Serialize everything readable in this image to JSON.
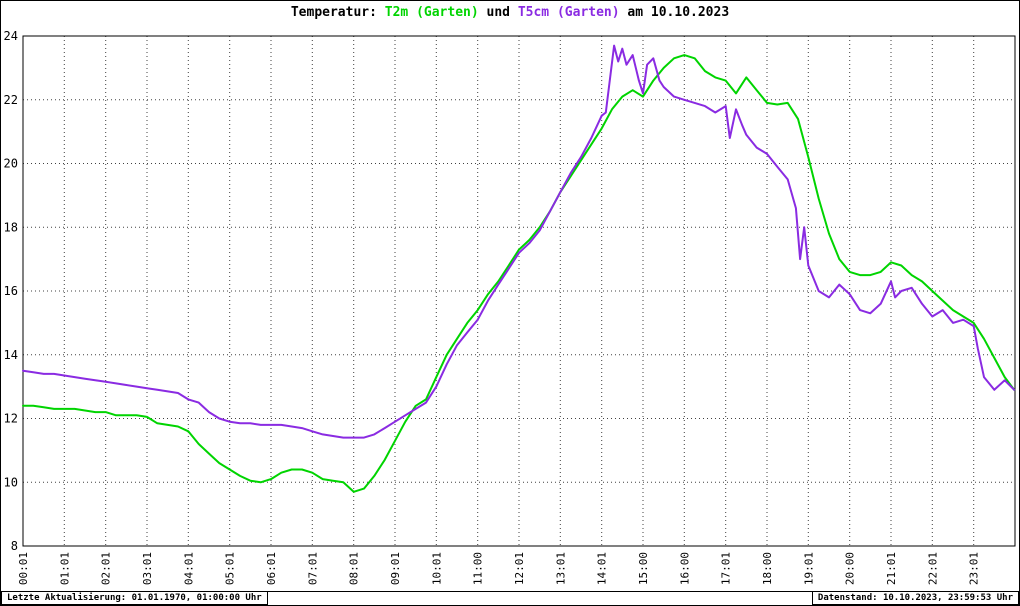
{
  "title": {
    "prefix": "Temperatur:",
    "series1": "T2m (Garten)",
    "conjunction": "und",
    "series2": "T5cm (Garten)",
    "suffix": "am 10.10.2023"
  },
  "footer": {
    "left": "Letzte Aktualisierung: 01.01.1970, 01:00:00 Uhr",
    "right": "Datenstand: 10.10.2023, 23:59:53 Uhr"
  },
  "chart_data": {
    "type": "line",
    "title": "Temperatur: T2m (Garten) und T5cm (Garten) am 10.10.2023",
    "xlabel": "",
    "ylabel": "",
    "ylim": [
      8,
      24
    ],
    "yticks": [
      8,
      10,
      12,
      14,
      16,
      18,
      20,
      22,
      24
    ],
    "xlim_hours": [
      0,
      24
    ],
    "xtick_labels": [
      "00:01",
      "01:01",
      "02:01",
      "03:01",
      "04:01",
      "05:01",
      "06:01",
      "07:01",
      "08:01",
      "09:01",
      "10:01",
      "11:00",
      "12:01",
      "13:01",
      "14:01",
      "15:00",
      "16:00",
      "17:01",
      "18:00",
      "19:01",
      "20:00",
      "21:01",
      "22:01",
      "23:01"
    ],
    "grid": "dotted",
    "grid_color": "#404040",
    "axis_color": "#000000",
    "background": "#ffffff",
    "legend_position": "in-title",
    "series": [
      {
        "name": "T2m (Garten)",
        "color": "#00d400",
        "points": [
          [
            0,
            12.4
          ],
          [
            0.25,
            12.4
          ],
          [
            0.5,
            12.35
          ],
          [
            0.75,
            12.3
          ],
          [
            1,
            12.3
          ],
          [
            1.25,
            12.3
          ],
          [
            1.5,
            12.25
          ],
          [
            1.75,
            12.2
          ],
          [
            2,
            12.2
          ],
          [
            2.25,
            12.1
          ],
          [
            2.5,
            12.1
          ],
          [
            2.75,
            12.1
          ],
          [
            3,
            12.05
          ],
          [
            3.25,
            11.85
          ],
          [
            3.5,
            11.8
          ],
          [
            3.75,
            11.75
          ],
          [
            4,
            11.6
          ],
          [
            4.25,
            11.2
          ],
          [
            4.5,
            10.9
          ],
          [
            4.75,
            10.6
          ],
          [
            5,
            10.4
          ],
          [
            5.25,
            10.2
          ],
          [
            5.5,
            10.05
          ],
          [
            5.75,
            10
          ],
          [
            6,
            10.1
          ],
          [
            6.25,
            10.3
          ],
          [
            6.5,
            10.4
          ],
          [
            6.75,
            10.4
          ],
          [
            7,
            10.3
          ],
          [
            7.25,
            10.1
          ],
          [
            7.5,
            10.05
          ],
          [
            7.75,
            10
          ],
          [
            8,
            9.7
          ],
          [
            8.25,
            9.8
          ],
          [
            8.5,
            10.2
          ],
          [
            8.75,
            10.7
          ],
          [
            9,
            11.3
          ],
          [
            9.25,
            11.9
          ],
          [
            9.5,
            12.4
          ],
          [
            9.75,
            12.6
          ],
          [
            10,
            13.3
          ],
          [
            10.25,
            14
          ],
          [
            10.5,
            14.5
          ],
          [
            10.75,
            15
          ],
          [
            11,
            15.4
          ],
          [
            11.25,
            15.9
          ],
          [
            11.5,
            16.3
          ],
          [
            11.75,
            16.8
          ],
          [
            12,
            17.3
          ],
          [
            12.25,
            17.6
          ],
          [
            12.5,
            18
          ],
          [
            12.75,
            18.5
          ],
          [
            13,
            19.1
          ],
          [
            13.25,
            19.6
          ],
          [
            13.5,
            20.1
          ],
          [
            13.75,
            20.6
          ],
          [
            14,
            21.1
          ],
          [
            14.25,
            21.7
          ],
          [
            14.5,
            22.1
          ],
          [
            14.75,
            22.3
          ],
          [
            15,
            22.1
          ],
          [
            15.25,
            22.6
          ],
          [
            15.5,
            23
          ],
          [
            15.75,
            23.3
          ],
          [
            16,
            23.4
          ],
          [
            16.25,
            23.3
          ],
          [
            16.5,
            22.9
          ],
          [
            16.75,
            22.7
          ],
          [
            17,
            22.6
          ],
          [
            17.25,
            22.2
          ],
          [
            17.5,
            22.7
          ],
          [
            17.75,
            22.3
          ],
          [
            18,
            21.9
          ],
          [
            18.25,
            21.85
          ],
          [
            18.5,
            21.9
          ],
          [
            18.75,
            21.4
          ],
          [
            19,
            20.2
          ],
          [
            19.25,
            18.9
          ],
          [
            19.5,
            17.8
          ],
          [
            19.75,
            17
          ],
          [
            20,
            16.6
          ],
          [
            20.25,
            16.5
          ],
          [
            20.5,
            16.5
          ],
          [
            20.75,
            16.6
          ],
          [
            21,
            16.9
          ],
          [
            21.25,
            16.8
          ],
          [
            21.5,
            16.5
          ],
          [
            21.75,
            16.3
          ],
          [
            22,
            16
          ],
          [
            22.25,
            15.7
          ],
          [
            22.5,
            15.4
          ],
          [
            22.75,
            15.2
          ],
          [
            23,
            15
          ],
          [
            23.25,
            14.5
          ],
          [
            23.5,
            13.9
          ],
          [
            23.75,
            13.3
          ],
          [
            23.98,
            12.9
          ]
        ]
      },
      {
        "name": "T5cm (Garten)",
        "color": "#8a2be2",
        "points": [
          [
            0,
            13.5
          ],
          [
            0.25,
            13.45
          ],
          [
            0.5,
            13.4
          ],
          [
            0.75,
            13.4
          ],
          [
            1,
            13.35
          ],
          [
            1.25,
            13.3
          ],
          [
            1.5,
            13.25
          ],
          [
            1.75,
            13.2
          ],
          [
            2,
            13.15
          ],
          [
            2.25,
            13.1
          ],
          [
            2.5,
            13.05
          ],
          [
            2.75,
            13
          ],
          [
            3,
            12.95
          ],
          [
            3.25,
            12.9
          ],
          [
            3.5,
            12.85
          ],
          [
            3.75,
            12.8
          ],
          [
            4,
            12.6
          ],
          [
            4.25,
            12.5
          ],
          [
            4.5,
            12.2
          ],
          [
            4.75,
            12
          ],
          [
            5,
            11.9
          ],
          [
            5.25,
            11.85
          ],
          [
            5.5,
            11.85
          ],
          [
            5.75,
            11.8
          ],
          [
            6,
            11.8
          ],
          [
            6.25,
            11.8
          ],
          [
            6.5,
            11.75
          ],
          [
            6.75,
            11.7
          ],
          [
            7,
            11.6
          ],
          [
            7.25,
            11.5
          ],
          [
            7.5,
            11.45
          ],
          [
            7.75,
            11.4
          ],
          [
            8,
            11.4
          ],
          [
            8.25,
            11.4
          ],
          [
            8.5,
            11.5
          ],
          [
            8.75,
            11.7
          ],
          [
            9,
            11.9
          ],
          [
            9.25,
            12.1
          ],
          [
            9.5,
            12.3
          ],
          [
            9.75,
            12.5
          ],
          [
            10,
            13
          ],
          [
            10.25,
            13.7
          ],
          [
            10.5,
            14.3
          ],
          [
            10.75,
            14.7
          ],
          [
            11,
            15.1
          ],
          [
            11.25,
            15.7
          ],
          [
            11.5,
            16.2
          ],
          [
            11.75,
            16.7
          ],
          [
            12,
            17.2
          ],
          [
            12.25,
            17.5
          ],
          [
            12.5,
            17.9
          ],
          [
            12.75,
            18.5
          ],
          [
            13,
            19.1
          ],
          [
            13.25,
            19.7
          ],
          [
            13.5,
            20.2
          ],
          [
            13.75,
            20.8
          ],
          [
            14,
            21.5
          ],
          [
            14.1,
            21.6
          ],
          [
            14.3,
            23.7
          ],
          [
            14.4,
            23.2
          ],
          [
            14.5,
            23.6
          ],
          [
            14.6,
            23.1
          ],
          [
            14.75,
            23.4
          ],
          [
            14.9,
            22.6
          ],
          [
            15,
            22.2
          ],
          [
            15.1,
            23.1
          ],
          [
            15.25,
            23.3
          ],
          [
            15.4,
            22.6
          ],
          [
            15.5,
            22.4
          ],
          [
            15.75,
            22.1
          ],
          [
            16,
            22
          ],
          [
            16.25,
            21.9
          ],
          [
            16.5,
            21.8
          ],
          [
            16.75,
            21.6
          ],
          [
            17,
            21.8
          ],
          [
            17.1,
            20.8
          ],
          [
            17.25,
            21.7
          ],
          [
            17.4,
            21.2
          ],
          [
            17.5,
            20.9
          ],
          [
            17.75,
            20.5
          ],
          [
            18,
            20.3
          ],
          [
            18.25,
            19.9
          ],
          [
            18.5,
            19.5
          ],
          [
            18.7,
            18.6
          ],
          [
            18.8,
            17
          ],
          [
            18.9,
            18
          ],
          [
            19,
            16.8
          ],
          [
            19.25,
            16
          ],
          [
            19.5,
            15.8
          ],
          [
            19.75,
            16.2
          ],
          [
            20,
            15.9
          ],
          [
            20.25,
            15.4
          ],
          [
            20.5,
            15.3
          ],
          [
            20.75,
            15.6
          ],
          [
            21,
            16.3
          ],
          [
            21.1,
            15.8
          ],
          [
            21.25,
            16
          ],
          [
            21.5,
            16.1
          ],
          [
            21.75,
            15.6
          ],
          [
            22,
            15.2
          ],
          [
            22.25,
            15.4
          ],
          [
            22.5,
            15
          ],
          [
            22.75,
            15.1
          ],
          [
            23,
            14.9
          ],
          [
            23.1,
            14.2
          ],
          [
            23.25,
            13.3
          ],
          [
            23.5,
            12.9
          ],
          [
            23.75,
            13.2
          ],
          [
            23.98,
            12.9
          ]
        ]
      }
    ]
  }
}
